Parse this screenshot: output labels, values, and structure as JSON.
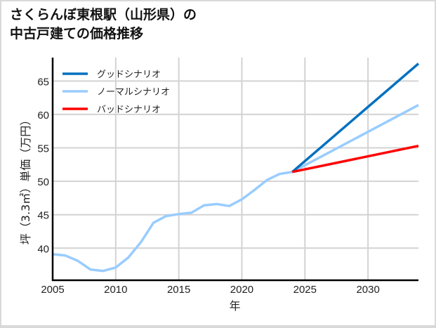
{
  "title": "さくらんぼ東根駅（山形県）の\n中古戸建ての価格推移",
  "chart_data": {
    "type": "line",
    "title": "さくらんぼ東根駅（山形県）の中古戸建ての価格推移",
    "xlabel": "年",
    "ylabel": "坪（3.3㎡）単価（万円）",
    "xlim": [
      2005,
      2034
    ],
    "ylim": [
      35.2,
      68.5
    ],
    "xticks": [
      2005,
      2010,
      2015,
      2020,
      2025,
      2030
    ],
    "yticks": [
      40,
      45,
      50,
      55,
      60,
      65
    ],
    "grid": true,
    "legend_position": "upper left",
    "series": [
      {
        "name": "グッドシナリオ",
        "color": "#0070c0",
        "x": [
          2024,
          2034
        ],
        "values": [
          51.4,
          67.6
        ]
      },
      {
        "name": "ノーマルシナリオ",
        "color": "#99ccff",
        "x": [
          2005,
          2006,
          2007,
          2008,
          2009,
          2010,
          2011,
          2012,
          2013,
          2014,
          2015,
          2016,
          2017,
          2018,
          2019,
          2020,
          2021,
          2022,
          2023,
          2024,
          2034
        ],
        "values": [
          39.1,
          38.9,
          38.1,
          36.8,
          36.6,
          37.1,
          38.6,
          40.9,
          43.8,
          44.8,
          45.1,
          45.3,
          46.4,
          46.6,
          46.3,
          47.3,
          48.7,
          50.2,
          51.1,
          51.4,
          61.4
        ]
      },
      {
        "name": "バッドシナリオ",
        "color": "#ff0000",
        "x": [
          2024,
          2034
        ],
        "values": [
          51.4,
          55.3
        ]
      }
    ]
  }
}
